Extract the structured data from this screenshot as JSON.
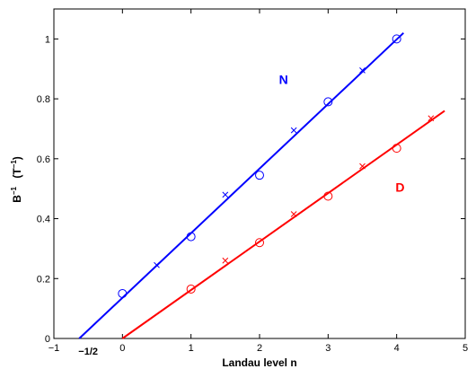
{
  "chart_data": {
    "type": "scatter",
    "title": "",
    "xlabel": "Landau level   n",
    "ylabel_parts": {
      "b": "B",
      "b_exp": "−1",
      "lparen": "(T",
      "t_exp": "−1",
      "rparen": ")"
    },
    "xlim": [
      -1,
      5
    ],
    "ylim": [
      0,
      1.1
    ],
    "grid": false,
    "x_ticks": [
      -1,
      0,
      1,
      2,
      3,
      4,
      5
    ],
    "x_tick_labels": [
      "−1",
      "0",
      "1",
      "2",
      "3",
      "4",
      "5"
    ],
    "y_ticks": [
      0,
      0.2,
      0.4,
      0.6,
      0.8,
      1
    ],
    "y_tick_labels": [
      "0",
      "0.2",
      "0.4",
      "0.6",
      "0.8",
      "1"
    ],
    "annotations": [
      {
        "text": "−1/2",
        "x": -0.5
      }
    ],
    "series": [
      {
        "name": "N",
        "color": "#0000ff",
        "label_at": [
          2.35,
          0.85
        ],
        "circles": [
          {
            "x": 0,
            "y": 0.15
          },
          {
            "x": 1,
            "y": 0.34
          },
          {
            "x": 2,
            "y": 0.545
          },
          {
            "x": 3,
            "y": 0.79
          },
          {
            "x": 4,
            "y": 1.0
          }
        ],
        "crosses": [
          {
            "x": 0.5,
            "y": 0.245
          },
          {
            "x": 1.5,
            "y": 0.48
          },
          {
            "x": 2.5,
            "y": 0.695
          },
          {
            "x": 3.5,
            "y": 0.895
          }
        ],
        "fit_line": [
          {
            "x": -0.63,
            "y": 0
          },
          {
            "x": 4.1,
            "y": 1.02
          }
        ]
      },
      {
        "name": "D",
        "color": "#ff0000",
        "label_at": [
          4.05,
          0.49
        ],
        "circles": [
          {
            "x": 1,
            "y": 0.165
          },
          {
            "x": 2,
            "y": 0.32
          },
          {
            "x": 3,
            "y": 0.475
          },
          {
            "x": 4,
            "y": 0.635
          }
        ],
        "crosses": [
          {
            "x": 1.5,
            "y": 0.26
          },
          {
            "x": 2.5,
            "y": 0.415
          },
          {
            "x": 3.5,
            "y": 0.575
          },
          {
            "x": 4.5,
            "y": 0.735
          }
        ],
        "fit_line": [
          {
            "x": 0,
            "y": 0
          },
          {
            "x": 4.7,
            "y": 0.76
          }
        ]
      }
    ]
  }
}
